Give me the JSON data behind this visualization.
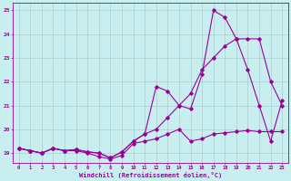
{
  "xlabel": "Windchill (Refroidissement éolien,°C)",
  "background_color": "#c8eef0",
  "line_color": "#990099",
  "grid_color": "#aacccc",
  "xlim": [
    -0.5,
    23.5
  ],
  "ylim": [
    18.6,
    25.3
  ],
  "yticks": [
    19,
    20,
    21,
    22,
    23,
    24,
    25
  ],
  "xticks": [
    0,
    1,
    2,
    3,
    4,
    5,
    6,
    7,
    8,
    9,
    10,
    11,
    12,
    13,
    14,
    15,
    16,
    17,
    18,
    19,
    20,
    21,
    22,
    23
  ],
  "line1_x": [
    0,
    1,
    2,
    3,
    4,
    5,
    6,
    7,
    8,
    9,
    10,
    11,
    12,
    13,
    14,
    15,
    16,
    17,
    18,
    19,
    20,
    21,
    22,
    23
  ],
  "line1_y": [
    19.2,
    19.1,
    19.0,
    19.2,
    19.1,
    19.1,
    19.0,
    18.85,
    18.75,
    18.9,
    19.4,
    19.5,
    19.6,
    19.8,
    20.0,
    19.5,
    19.6,
    19.8,
    19.85,
    19.9,
    19.95,
    19.9,
    19.9,
    19.9
  ],
  "line2_x": [
    0,
    1,
    2,
    3,
    4,
    5,
    6,
    7,
    8,
    9,
    10,
    11,
    12,
    13,
    14,
    15,
    16,
    17,
    18,
    19,
    20,
    21,
    22,
    23
  ],
  "line2_y": [
    19.2,
    19.1,
    19.0,
    19.2,
    19.1,
    19.15,
    19.05,
    19.0,
    18.8,
    19.05,
    19.5,
    19.8,
    21.8,
    21.6,
    21.0,
    20.85,
    22.3,
    25.0,
    24.7,
    23.8,
    22.5,
    21.0,
    19.5,
    21.2
  ],
  "line3_x": [
    0,
    1,
    2,
    3,
    4,
    5,
    6,
    7,
    8,
    9,
    10,
    11,
    12,
    13,
    14,
    15,
    16,
    17,
    18,
    19,
    20,
    21,
    22,
    23
  ],
  "line3_y": [
    19.2,
    19.1,
    19.0,
    19.2,
    19.1,
    19.15,
    19.05,
    19.0,
    18.8,
    19.05,
    19.5,
    19.8,
    20.0,
    20.5,
    21.0,
    21.5,
    22.5,
    23.0,
    23.5,
    23.8,
    23.8,
    23.8,
    22.0,
    21.0
  ]
}
